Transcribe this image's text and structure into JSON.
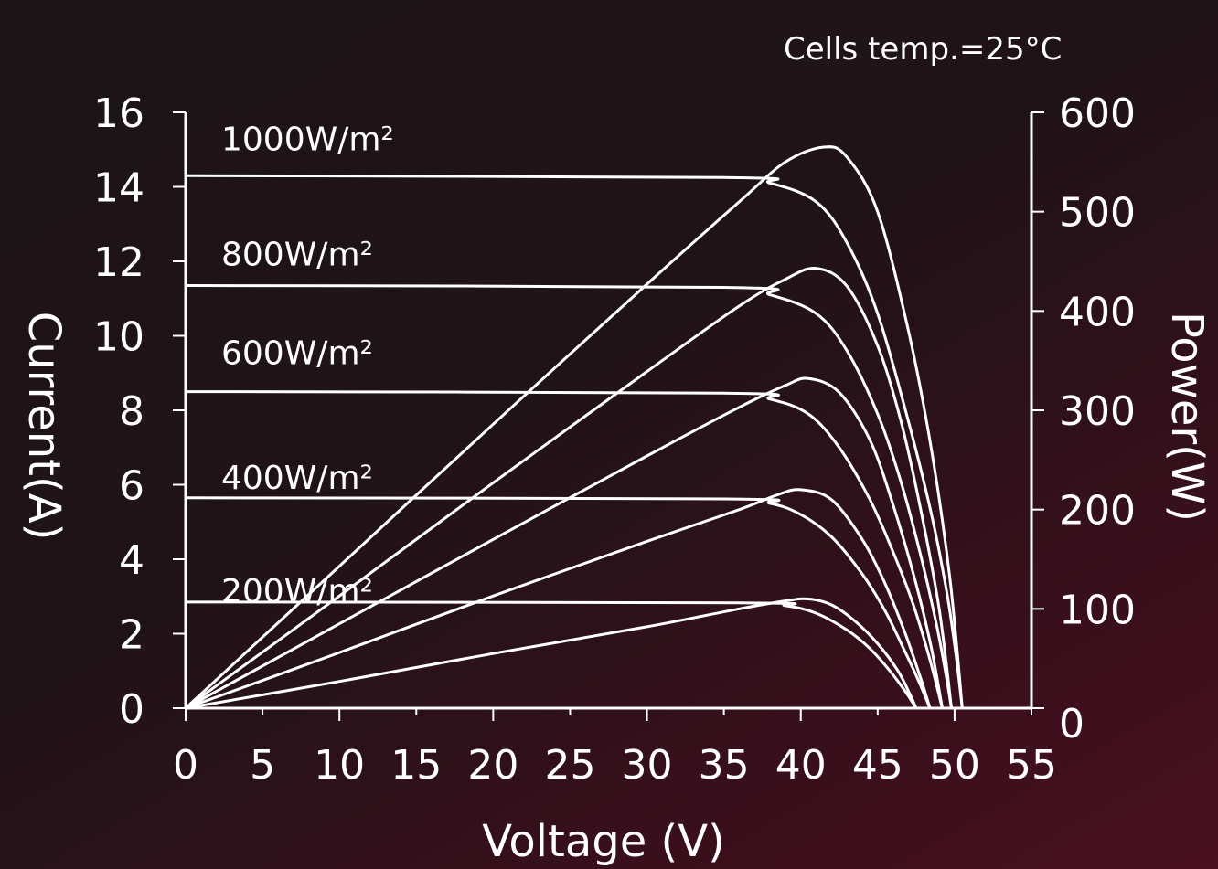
{
  "chart_data": {
    "type": "line",
    "annotation": "Cells temp.=25°C",
    "xlabel": "Voltage (V)",
    "ylabel_left": "Current(A)",
    "ylabel_right": "Power(W)",
    "xlim": [
      0,
      55
    ],
    "ylim_left": [
      0,
      16
    ],
    "ylim_right": [
      0,
      600
    ],
    "x_ticks": [
      "0",
      "5",
      "10",
      "15",
      "20",
      "25",
      "30",
      "35",
      "40",
      "45",
      "50",
      "55"
    ],
    "y_left_ticks": [
      "0",
      "2",
      "4",
      "6",
      "8",
      "10",
      "12",
      "14",
      "16"
    ],
    "y_right_ticks": [
      "0",
      "100",
      "200",
      "300",
      "400",
      "500",
      "600"
    ],
    "grid": false,
    "series": [
      {
        "name": "1000W/m²",
        "isc": 14.3,
        "voc": 50.5,
        "p_max": 565,
        "v_mp": 41.5,
        "iv_curve": [
          [
            0,
            14.3
          ],
          [
            35,
            14.25
          ],
          [
            38,
            14.1
          ],
          [
            41,
            13.6
          ],
          [
            43,
            12.5
          ],
          [
            45,
            10.6
          ],
          [
            47,
            7.7
          ],
          [
            48.5,
            5.2
          ],
          [
            49.5,
            3.1
          ],
          [
            50.1,
            1.4
          ],
          [
            50.5,
            0
          ]
        ],
        "pv_curve": [
          [
            0,
            0
          ],
          [
            10,
            143
          ],
          [
            20,
            286
          ],
          [
            30,
            427
          ],
          [
            36,
            510
          ],
          [
            39,
            550
          ],
          [
            41.5,
            565
          ],
          [
            43,
            555
          ],
          [
            45,
            500
          ],
          [
            47,
            380
          ],
          [
            48.5,
            260
          ],
          [
            49.7,
            130
          ],
          [
            50.5,
            0
          ]
        ]
      },
      {
        "name": "800W/m²",
        "isc": 11.35,
        "voc": 49.8,
        "p_max": 443,
        "v_mp": 41.0,
        "iv_curve": [
          [
            0,
            11.35
          ],
          [
            35,
            11.3
          ],
          [
            38,
            11.1
          ],
          [
            41,
            10.6
          ],
          [
            43,
            9.6
          ],
          [
            45,
            7.9
          ],
          [
            46.5,
            6.1
          ],
          [
            47.8,
            4.1
          ],
          [
            48.8,
            2.3
          ],
          [
            49.4,
            1.0
          ],
          [
            49.8,
            0
          ]
        ],
        "pv_curve": [
          [
            0,
            0
          ],
          [
            10,
            113
          ],
          [
            20,
            227
          ],
          [
            30,
            339
          ],
          [
            36,
            405
          ],
          [
            39,
            432
          ],
          [
            41,
            443
          ],
          [
            43,
            425
          ],
          [
            45,
            365
          ],
          [
            46.5,
            290
          ],
          [
            47.8,
            200
          ],
          [
            49,
            100
          ],
          [
            49.8,
            0
          ]
        ]
      },
      {
        "name": "600W/m²",
        "isc": 8.5,
        "voc": 49.2,
        "p_max": 332,
        "v_mp": 40.5,
        "iv_curve": [
          [
            0,
            8.5
          ],
          [
            35,
            8.46
          ],
          [
            38,
            8.3
          ],
          [
            40.5,
            7.9
          ],
          [
            42.5,
            7.0
          ],
          [
            44.5,
            5.6
          ],
          [
            46,
            4.2
          ],
          [
            47.3,
            2.8
          ],
          [
            48.4,
            1.3
          ],
          [
            49.2,
            0
          ]
        ],
        "pv_curve": [
          [
            0,
            0
          ],
          [
            10,
            85
          ],
          [
            20,
            170
          ],
          [
            30,
            254
          ],
          [
            36,
            303
          ],
          [
            39,
            325
          ],
          [
            40.5,
            332
          ],
          [
            42.5,
            318
          ],
          [
            44.5,
            270
          ],
          [
            46,
            205
          ],
          [
            47.5,
            125
          ],
          [
            48.5,
            60
          ],
          [
            49.2,
            0
          ]
        ]
      },
      {
        "name": "400W/m²",
        "isc": 5.65,
        "voc": 48.4,
        "p_max": 220,
        "v_mp": 40.0,
        "iv_curve": [
          [
            0,
            5.65
          ],
          [
            35,
            5.62
          ],
          [
            38,
            5.5
          ],
          [
            40,
            5.2
          ],
          [
            42,
            4.6
          ],
          [
            44,
            3.6
          ],
          [
            45.5,
            2.6
          ],
          [
            46.8,
            1.5
          ],
          [
            47.7,
            0.7
          ],
          [
            48.4,
            0
          ]
        ],
        "pv_curve": [
          [
            0,
            0
          ],
          [
            10,
            56
          ],
          [
            20,
            113
          ],
          [
            30,
            168
          ],
          [
            36,
            200
          ],
          [
            38.5,
            215
          ],
          [
            40,
            220
          ],
          [
            42,
            210
          ],
          [
            44,
            170
          ],
          [
            45.5,
            125
          ],
          [
            46.8,
            75
          ],
          [
            47.8,
            30
          ],
          [
            48.4,
            0
          ]
        ]
      },
      {
        "name": "200W/m²",
        "isc": 2.85,
        "voc": 47.5,
        "p_max": 110,
        "v_mp": 40.5,
        "iv_curve": [
          [
            0,
            2.85
          ],
          [
            36,
            2.83
          ],
          [
            39,
            2.75
          ],
          [
            41,
            2.55
          ],
          [
            43,
            2.1
          ],
          [
            44.5,
            1.6
          ],
          [
            45.8,
            1.0
          ],
          [
            46.8,
            0.45
          ],
          [
            47.5,
            0
          ]
        ],
        "pv_curve": [
          [
            0,
            0
          ],
          [
            10,
            27
          ],
          [
            20,
            55
          ],
          [
            30,
            82
          ],
          [
            36,
            100
          ],
          [
            39,
            108
          ],
          [
            40.5,
            110
          ],
          [
            42,
            104
          ],
          [
            43.5,
            88
          ],
          [
            45,
            65
          ],
          [
            46.3,
            38
          ],
          [
            47.1,
            14
          ],
          [
            47.5,
            0
          ]
        ]
      }
    ]
  }
}
